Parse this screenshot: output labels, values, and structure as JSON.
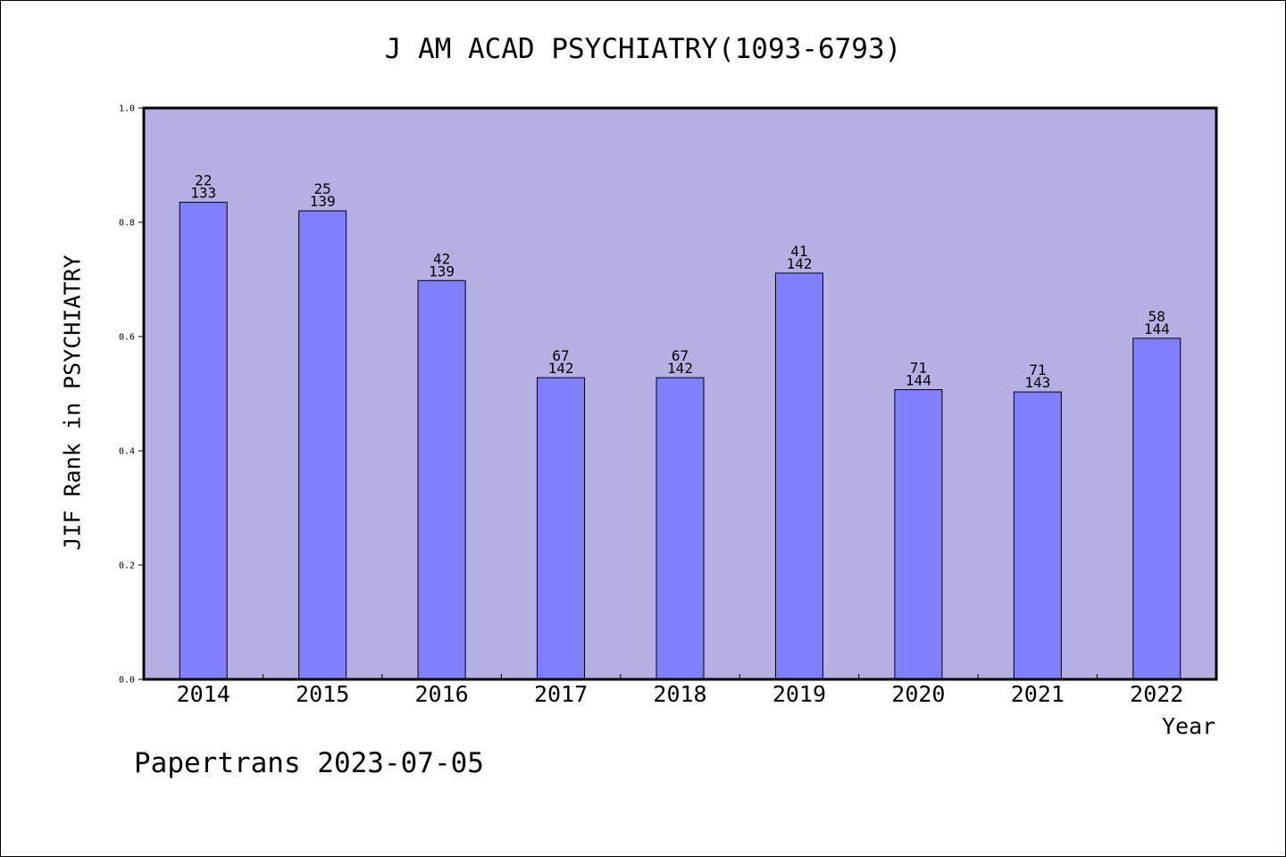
{
  "chart_data": {
    "type": "bar",
    "title": "J AM ACAD PSYCHIATRY(1093-6793)",
    "xlabel": "Year",
    "ylabel": "JIF Rank in PSYCHIATRY",
    "ylim": [
      0,
      1.0
    ],
    "yticks": [
      "0.0",
      "0.2",
      "0.4",
      "0.6",
      "0.8",
      "1.0"
    ],
    "grid": false,
    "categories": [
      "2014",
      "2015",
      "2016",
      "2017",
      "2018",
      "2019",
      "2020",
      "2021",
      "2022"
    ],
    "values": [
      0.835,
      0.82,
      0.698,
      0.528,
      0.528,
      0.711,
      0.507,
      0.503,
      0.597
    ],
    "rank": [
      "22",
      "25",
      "42",
      "67",
      "67",
      "41",
      "71",
      "71",
      "58"
    ],
    "total": [
      "133",
      "139",
      "139",
      "142",
      "142",
      "142",
      "144",
      "143",
      "144"
    ],
    "colors": {
      "plot_bg": "#b5b0e3",
      "bar": "#8080ff",
      "axis": "#000000"
    }
  },
  "footer": "Papertrans 2023-07-05"
}
